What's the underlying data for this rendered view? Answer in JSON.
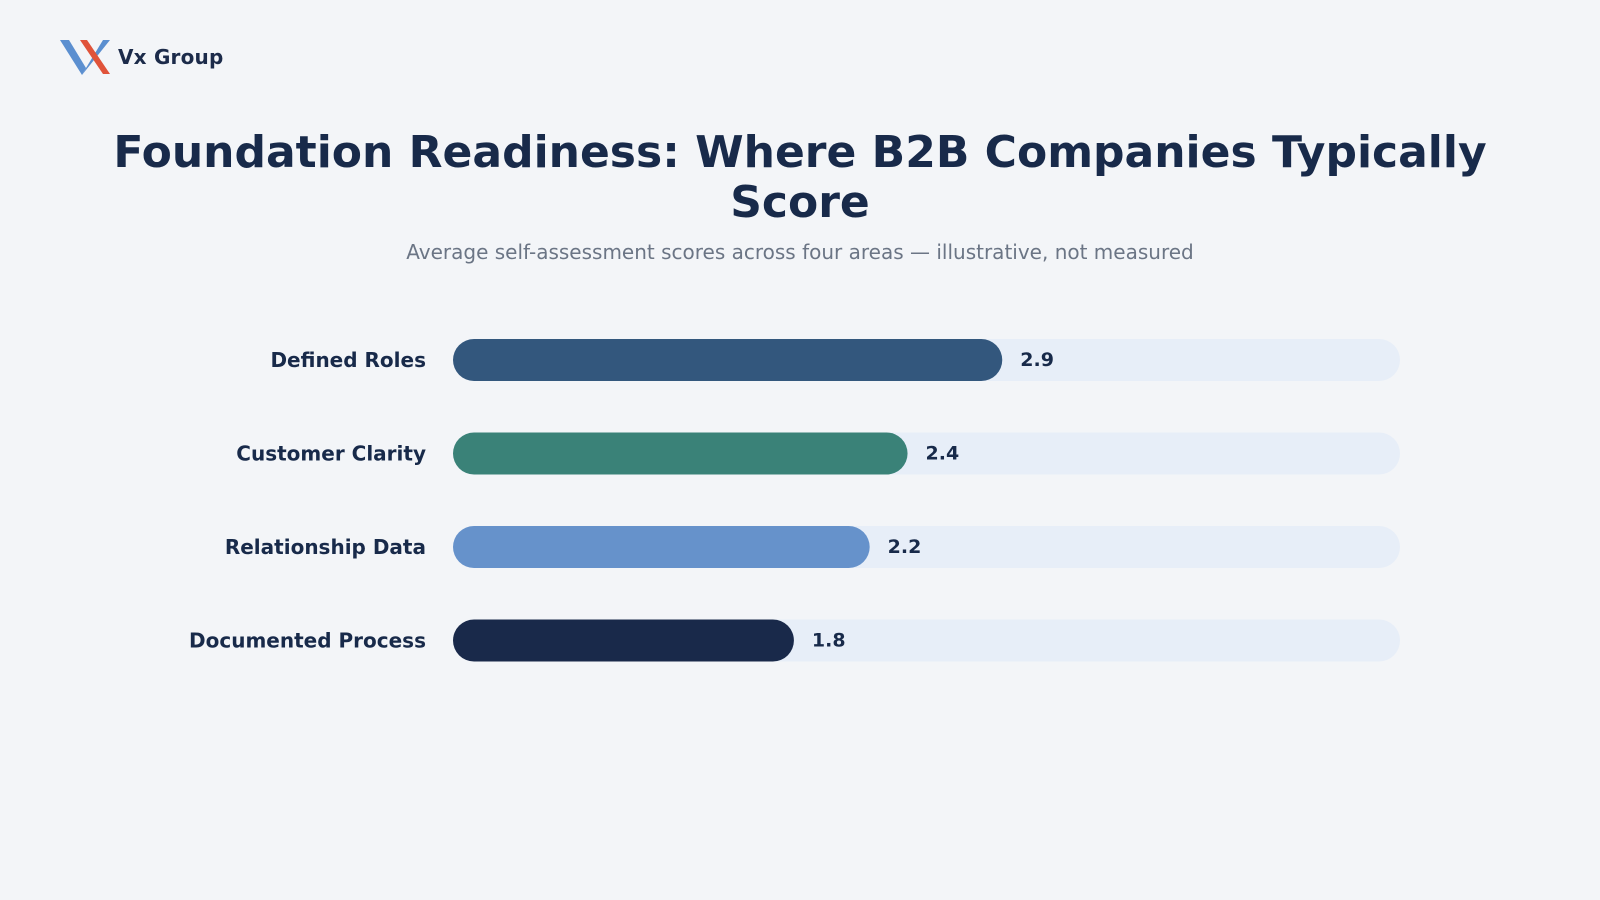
{
  "brand": {
    "name": "Vx Group",
    "logo_colors": [
      "#5b8fd0",
      "#e0533a"
    ]
  },
  "header": {
    "title": "Foundation Readiness: Where B2B Companies Typically Score",
    "subtitle": "Average self-assessment scores across four areas — illustrative, not measured"
  },
  "chart_data": {
    "type": "bar",
    "orientation": "horizontal",
    "title": "Foundation Readiness: Where B2B Companies Typically Score",
    "subtitle": "Average self-assessment scores across four areas — illustrative, not measured",
    "categories": [
      "Defined Roles",
      "Customer Clarity",
      "Relationship Data",
      "Documented Process"
    ],
    "values": [
      2.9,
      2.4,
      2.2,
      1.8
    ],
    "value_labels": [
      "2.9",
      "2.4",
      "2.2",
      "1.8"
    ],
    "xlim": [
      0,
      5
    ],
    "colors": [
      "#33577d",
      "#3a8278",
      "#6692cb",
      "#19294a"
    ],
    "track_color": "#e7eef8",
    "grid": false,
    "xlabel": "",
    "ylabel": ""
  }
}
